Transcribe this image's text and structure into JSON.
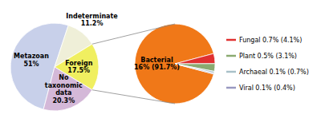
{
  "chart_data": [
    {
      "type": "pie",
      "categories": [
        "Metazoan",
        "Indeterminate",
        "Foreign",
        "No taxonomic data"
      ],
      "values": [
        51,
        11.2,
        17.5,
        20.3
      ],
      "value_labels": [
        "51%",
        "11.2%",
        "17.5%",
        "20.3%"
      ],
      "colors": [
        "#c8d0ea",
        "#efefd8",
        "#f0ef60",
        "#d4b8d8"
      ],
      "data_labels": true
    },
    {
      "type": "pie",
      "categories": [
        "Bacterial",
        "Fungal",
        "Plant",
        "Archaeal",
        "Viral"
      ],
      "values": [
        91.7,
        4.1,
        3.1,
        0.7,
        0.4
      ],
      "value_labels": [
        "16% (91.7%)",
        "0.7% (4.1%)",
        "0.5% (3.1%)",
        "0.1% (0.7%)",
        "0.1% (0.4%)"
      ],
      "colors": [
        "#f07818",
        "#e03030",
        "#8aaa70",
        "#a8c0c8",
        "#9898c0"
      ],
      "data_labels": true,
      "legend": "right"
    }
  ]
}
